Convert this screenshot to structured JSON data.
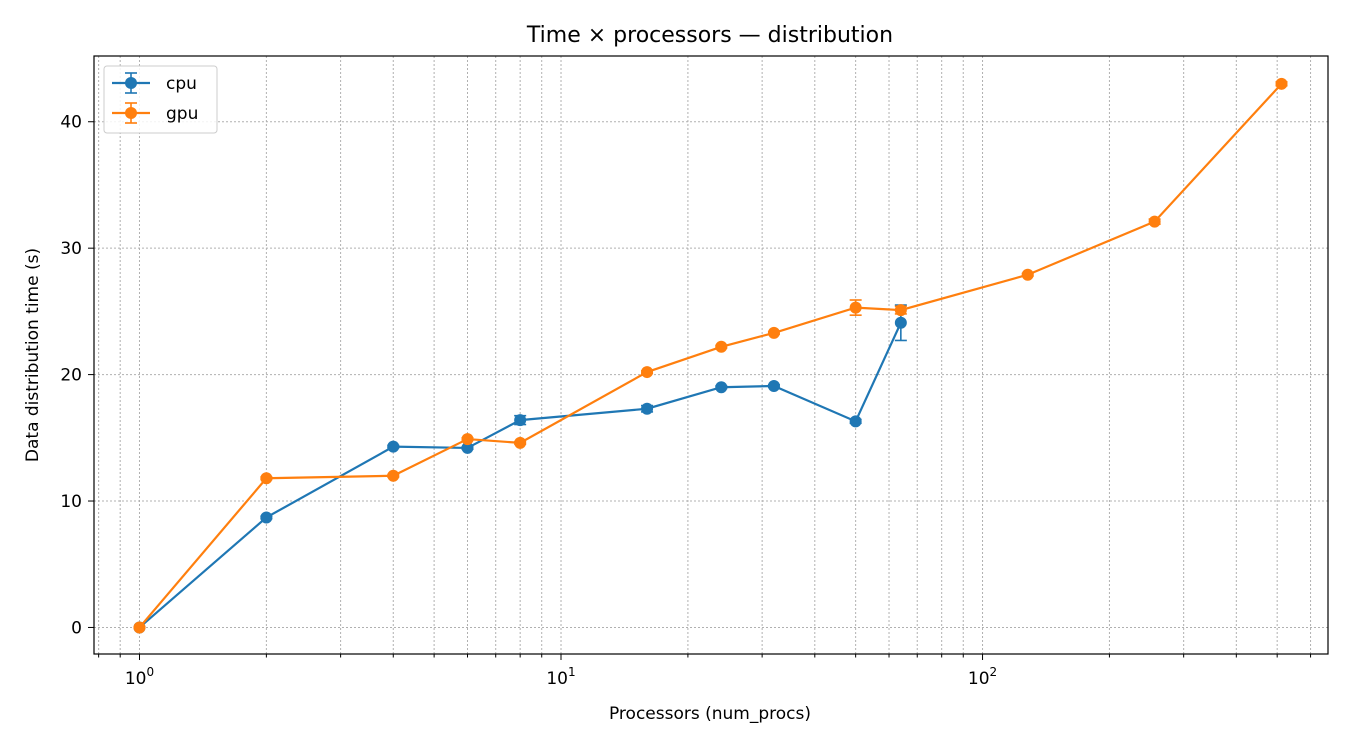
{
  "chart_data": {
    "type": "line",
    "title": "Time × processors — distribution",
    "xlabel": "Processors (num_procs)",
    "ylabel": "Data distribution time (s)",
    "xscale": "log",
    "xlim": [
      0.78,
      660
    ],
    "ylim": [
      -2.1,
      45.2
    ],
    "xticks": [
      {
        "value": 1,
        "base": "10",
        "exp": "0"
      },
      {
        "value": 10,
        "base": "10",
        "exp": "1"
      },
      {
        "value": 100,
        "base": "10",
        "exp": "2"
      }
    ],
    "yticks": [
      0,
      10,
      20,
      30,
      40
    ],
    "grid": true,
    "legend": "top-left",
    "series": [
      {
        "name": "cpu",
        "color": "#1f77b4",
        "points": [
          {
            "x": 1,
            "y": 0.0,
            "err": 0.05
          },
          {
            "x": 2,
            "y": 8.7,
            "err": 0.1
          },
          {
            "x": 4,
            "y": 14.3,
            "err": 0.1
          },
          {
            "x": 6,
            "y": 14.2,
            "err": 0.1
          },
          {
            "x": 8,
            "y": 16.4,
            "err": 0.35
          },
          {
            "x": 16,
            "y": 17.3,
            "err": 0.25
          },
          {
            "x": 24,
            "y": 19.0,
            "err": 0.1
          },
          {
            "x": 32,
            "y": 19.1,
            "err": 0.1
          },
          {
            "x": 50,
            "y": 16.3,
            "err": 0.15
          },
          {
            "x": 64,
            "y": 24.1,
            "err": 1.4
          }
        ]
      },
      {
        "name": "gpu",
        "color": "#ff7f0e",
        "points": [
          {
            "x": 1,
            "y": 0.0,
            "err": 0.05
          },
          {
            "x": 2,
            "y": 11.8,
            "err": 0.1
          },
          {
            "x": 4,
            "y": 12.0,
            "err": 0.1
          },
          {
            "x": 6,
            "y": 14.9,
            "err": 0.1
          },
          {
            "x": 8,
            "y": 14.6,
            "err": 0.1
          },
          {
            "x": 16,
            "y": 20.2,
            "err": 0.1
          },
          {
            "x": 24,
            "y": 22.2,
            "err": 0.1
          },
          {
            "x": 32,
            "y": 23.3,
            "err": 0.1
          },
          {
            "x": 50,
            "y": 25.3,
            "err": 0.6
          },
          {
            "x": 64,
            "y": 25.1,
            "err": 0.3
          },
          {
            "x": 128,
            "y": 27.9,
            "err": 0.1
          },
          {
            "x": 256,
            "y": 32.1,
            "err": 0.2
          },
          {
            "x": 512,
            "y": 43.0,
            "err": 0.15
          }
        ]
      }
    ]
  }
}
